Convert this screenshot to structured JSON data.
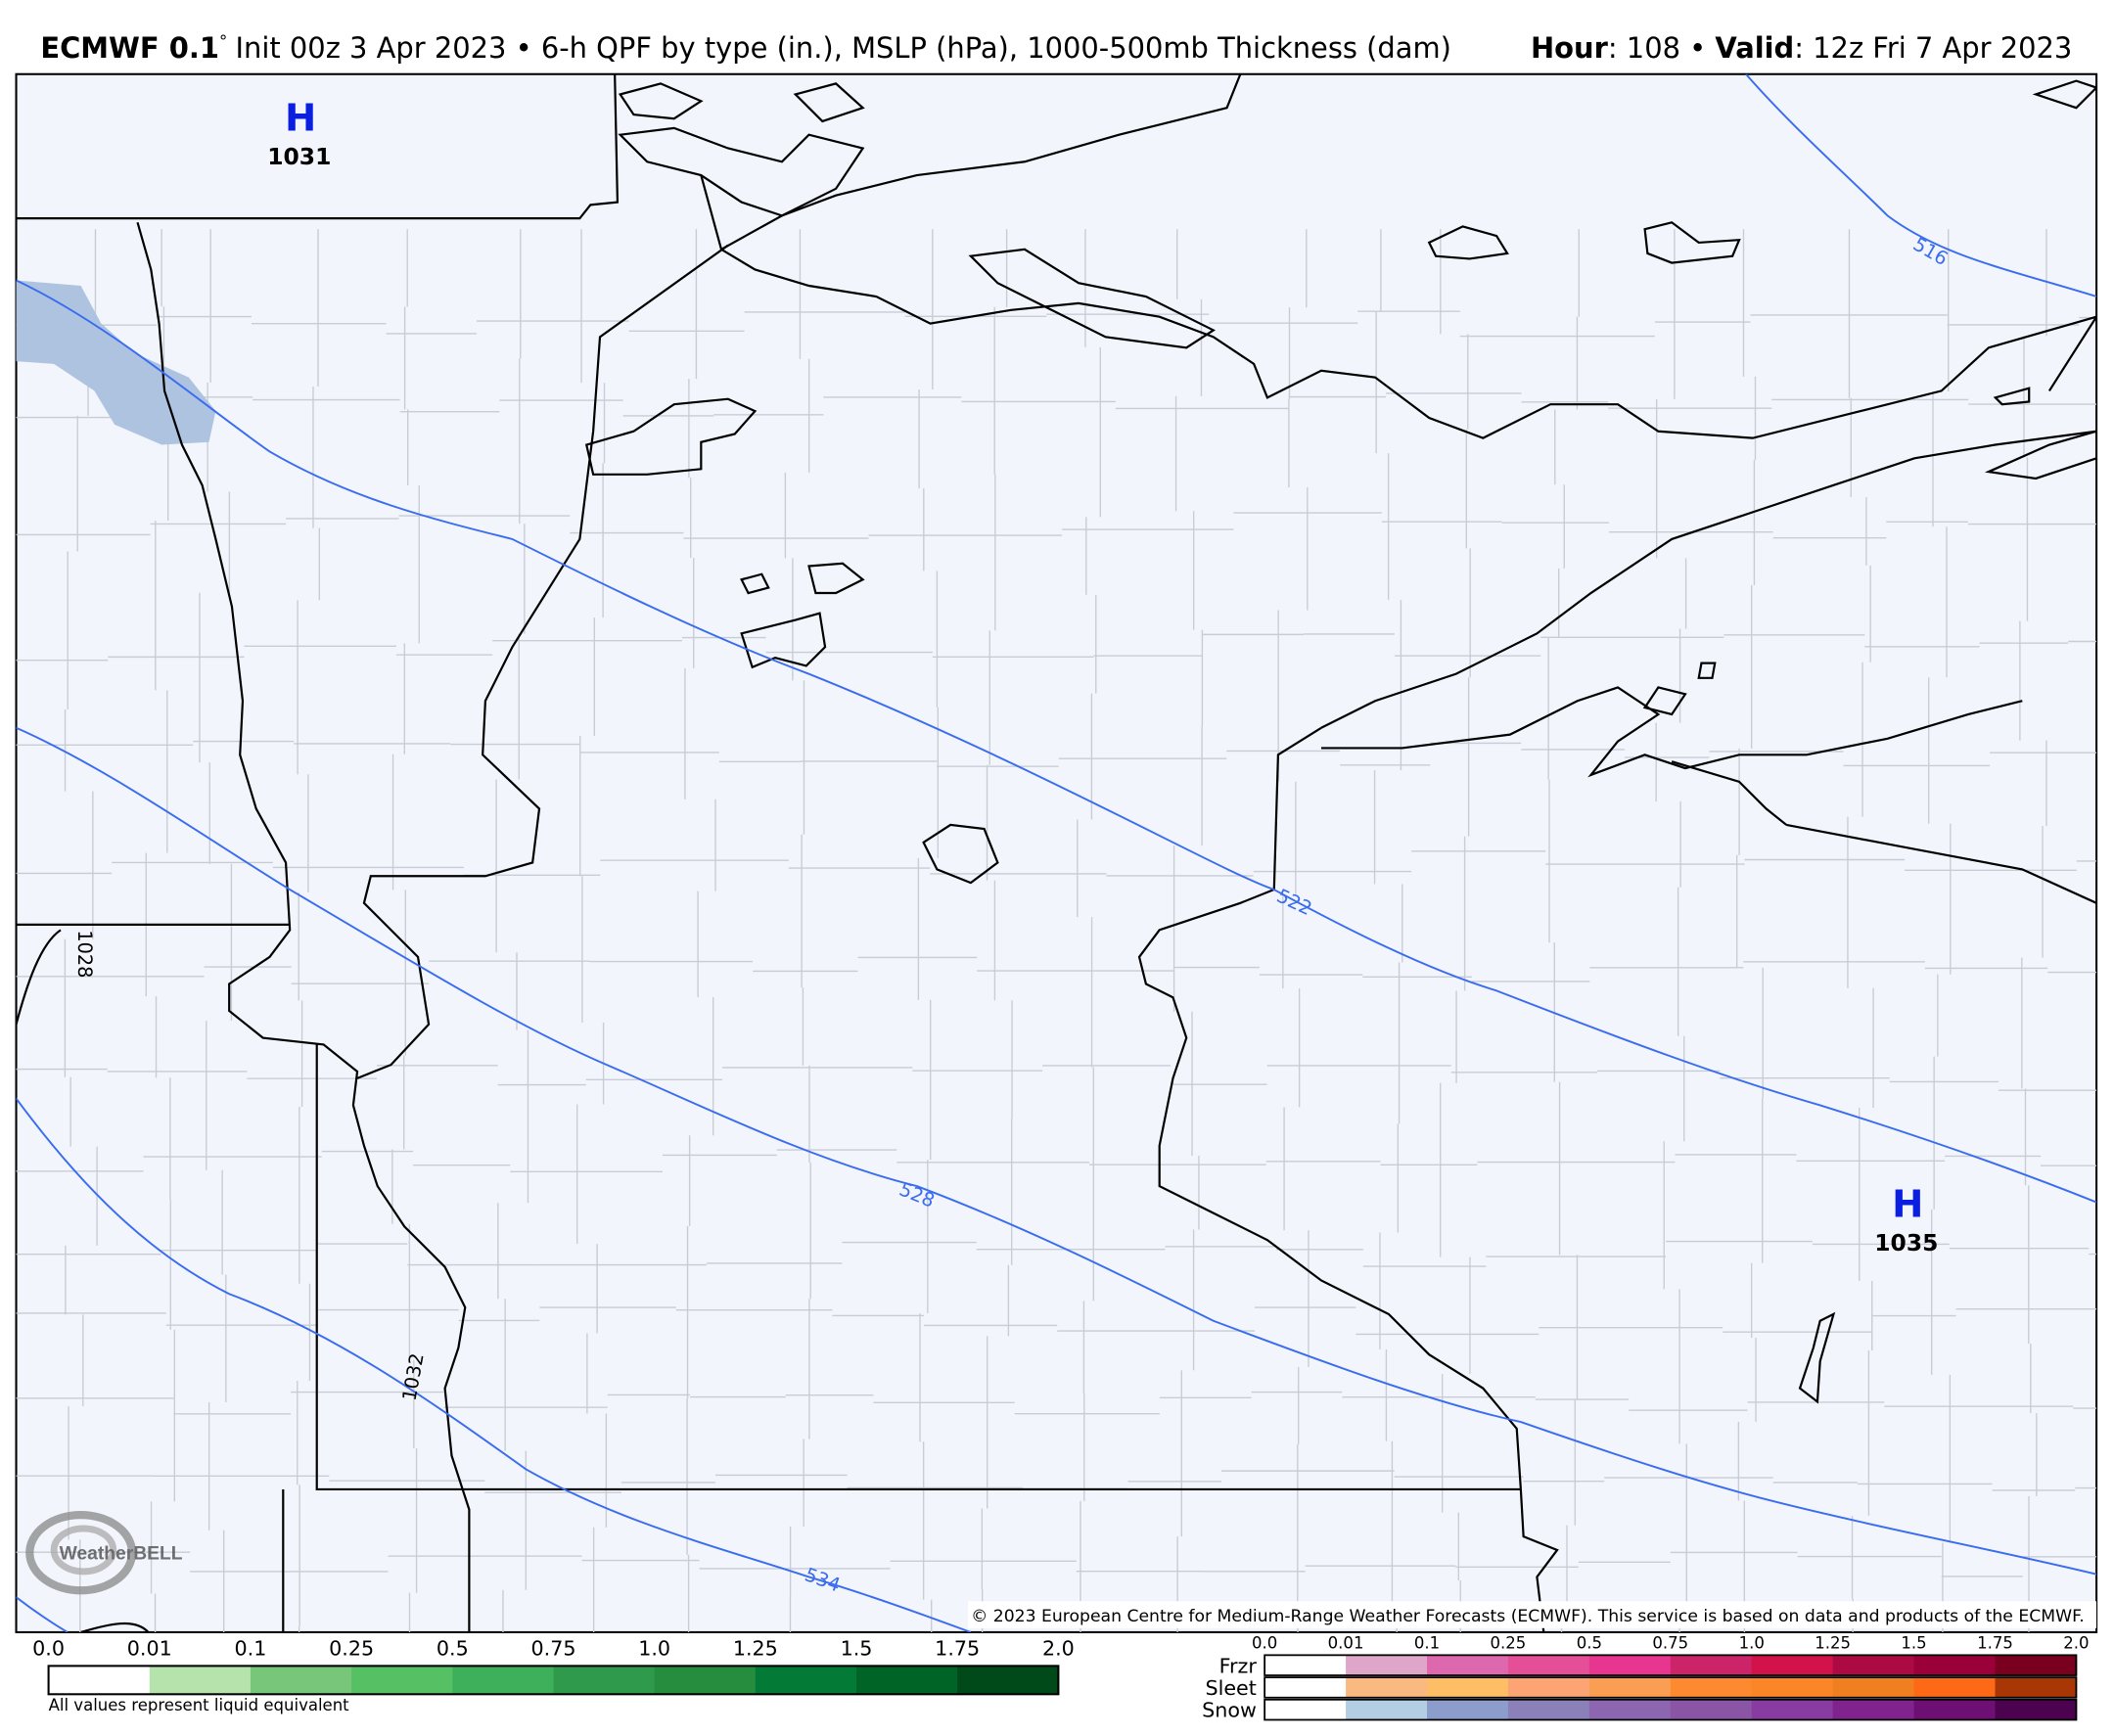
{
  "header": {
    "model": "ECMWF 0.1",
    "degree": "°",
    "description": "Init 00z 3 Apr 2023 • 6-h QPF by type (in.), MSLP (hPa), 1000-500mb Thickness (dam)",
    "hour_label": "Hour",
    "hour_value": ": 108 • ",
    "valid_label": "Valid",
    "valid_value": ": 12z Fri 7 Apr 2023"
  },
  "map": {
    "background": "#f2f5fc",
    "thickness_color": "#3a6cf0",
    "pressure_centers": [
      {
        "symbol": "H",
        "value": "1031"
      },
      {
        "symbol": "H",
        "value": "1035"
      }
    ],
    "isobar_labels": [
      "1028",
      "1032"
    ],
    "thickness_labels": [
      "516",
      "522",
      "528",
      "534"
    ],
    "copyright": "© 2023 European Centre for Medium-Range Weather Forecasts (ECMWF). This service is based on data and products of the ECMWF.",
    "logo": "WeatherBELL"
  },
  "legend": {
    "qpf": {
      "ticks": [
        "0.0",
        "0.01",
        "0.1",
        "0.25",
        "0.5",
        "0.75",
        "1.0",
        "1.25",
        "1.5",
        "1.75",
        "2.0"
      ],
      "colors": [
        "#ffffff",
        "#b5e3ab",
        "#78c679",
        "#56c064",
        "#3eb05c",
        "#2f9a4c",
        "#258d3d",
        "#047a37",
        "#006427",
        "#004a1a"
      ],
      "note": "All values represent liquid equivalent"
    },
    "ptype": {
      "ticks": [
        "0.0",
        "0.01",
        "0.1",
        "0.25",
        "0.5",
        "0.75",
        "1.0",
        "1.25",
        "1.5",
        "1.75",
        "2.0"
      ],
      "rows": [
        {
          "label": "Frzr",
          "colors": [
            "#ffffff",
            "#dea6c9",
            "#dd68ad",
            "#e44f98",
            "#e83690",
            "#cc2469",
            "#d3124c",
            "#ad0a44",
            "#9c0039",
            "#7a0020"
          ]
        },
        {
          "label": "Sleet",
          "colors": [
            "#ffffff",
            "#fbb982",
            "#fdbe65",
            "#fca474",
            "#f99e52",
            "#fd8a30",
            "#fb8627",
            "#f07f22",
            "#fd6916",
            "#a83705"
          ]
        },
        {
          "label": "Snow",
          "colors": [
            "#ffffff",
            "#b3cde3",
            "#8c9ccb",
            "#8c80b8",
            "#8c66b0",
            "#8a55a5",
            "#883ba0",
            "#81238c",
            "#6d0f73",
            "#4d024f"
          ]
        }
      ]
    }
  }
}
